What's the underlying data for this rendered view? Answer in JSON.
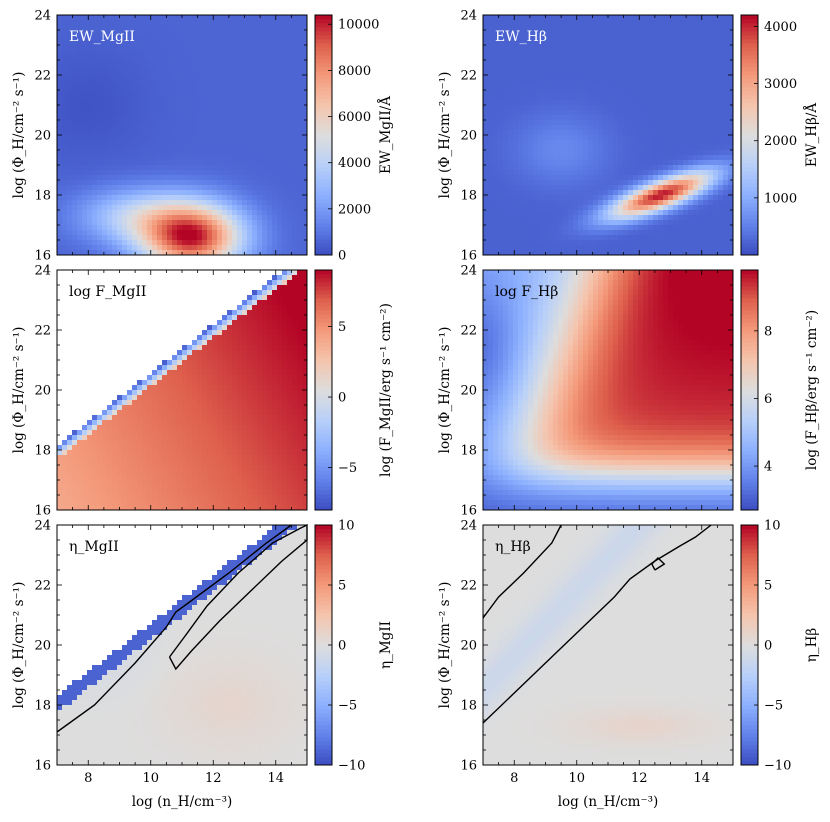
{
  "figure": {
    "xlabel": "log (n_H/cm⁻³)",
    "ylabel": "log (Φ_H/cm⁻² s⁻¹)"
  },
  "chart_data": [
    {
      "type": "heatmap",
      "id": "ew-mgii",
      "label": "EW_MgII",
      "xlim": [
        7,
        15
      ],
      "ylim": [
        16,
        24
      ],
      "xticks": [
        8,
        10,
        12,
        14
      ],
      "yticks": [
        16,
        18,
        20,
        22,
        24
      ],
      "colorbar": {
        "label": "EW_MgII/Å",
        "vmin": 0,
        "vmax": 10400,
        "ticks": [
          0,
          2000,
          4000,
          6000,
          8000,
          10000
        ],
        "tick_labels": [
          "0",
          "2000",
          "4000",
          "6000",
          "8000",
          "10000"
        ]
      },
      "colormap": "coolwarm",
      "features": {
        "peak": {
          "x": 11.3,
          "y": 16.8,
          "value": 10000
        },
        "background_value": 600
      }
    },
    {
      "type": "heatmap",
      "id": "ew-hb",
      "label": "EW_Hβ",
      "xlim": [
        7,
        15
      ],
      "ylim": [
        16,
        24
      ],
      "xticks": [
        8,
        10,
        12,
        14
      ],
      "yticks": [
        16,
        18,
        20,
        22,
        24
      ],
      "colorbar": {
        "label": "EW_Hβ/Å",
        "vmin": 0,
        "vmax": 4200,
        "ticks": [
          1000,
          2000,
          3000,
          4000
        ],
        "tick_labels": [
          "1000",
          "2000",
          "3000",
          "4000"
        ]
      },
      "colormap": "coolwarm",
      "features": {
        "peak": {
          "x": 12.7,
          "y": 18.0,
          "value": 4100
        },
        "background_value": 250
      }
    },
    {
      "type": "heatmap",
      "id": "flux-mgii",
      "label": "log F_MgII",
      "xlim": [
        7,
        15
      ],
      "ylim": [
        16,
        24
      ],
      "xticks": [
        8,
        10,
        12,
        14
      ],
      "yticks": [
        16,
        18,
        20,
        22,
        24
      ],
      "colorbar": {
        "label": "log (F_MgII/erg s⁻¹ cm⁻²)",
        "vmin": -8,
        "vmax": 9,
        "ticks": [
          -5,
          0,
          5
        ],
        "tick_labels": [
          "−5",
          "0",
          "5"
        ]
      },
      "colormap": "coolwarm",
      "features": {
        "undefined_region": "upper-left",
        "boundary": [
          [
            7,
            17.7
          ],
          [
            14.8,
            24
          ]
        ],
        "max_value": 9
      }
    },
    {
      "type": "heatmap",
      "id": "flux-hb",
      "label": "log F_Hβ",
      "xlim": [
        7,
        15
      ],
      "ylim": [
        16,
        24
      ],
      "xticks": [
        8,
        10,
        12,
        14
      ],
      "yticks": [
        16,
        18,
        20,
        22,
        24
      ],
      "colorbar": {
        "label": "log (F_Hβ/erg s⁻¹ cm⁻²)",
        "vmin": 2.7,
        "vmax": 9.8,
        "ticks": [
          4,
          6,
          8
        ],
        "tick_labels": [
          "4",
          "6",
          "8"
        ]
      },
      "colormap": "coolwarm",
      "features": {
        "min_value": 2.8,
        "max_value": 9.5
      }
    },
    {
      "type": "heatmap",
      "id": "eta-mgii",
      "label": "η_MgII",
      "xlim": [
        7,
        15
      ],
      "ylim": [
        16,
        24
      ],
      "xticks": [
        8,
        10,
        12,
        14
      ],
      "yticks": [
        16,
        18,
        20,
        22,
        24
      ],
      "colorbar": {
        "label": "η_MgII",
        "vmin": -10,
        "vmax": 10,
        "ticks": [
          -10,
          -5,
          0,
          5,
          10
        ],
        "tick_labels": [
          "−10",
          "−5",
          "0",
          "5",
          "10"
        ]
      },
      "colormap": "coolwarm",
      "features": {
        "undefined_region": "upper-left",
        "band_value": -9,
        "contour_count": 2
      }
    },
    {
      "type": "heatmap",
      "id": "eta-hb",
      "label": "η_Hβ",
      "xlim": [
        7,
        15
      ],
      "ylim": [
        16,
        24
      ],
      "xticks": [
        8,
        10,
        12,
        14
      ],
      "yticks": [
        16,
        18,
        20,
        22,
        24
      ],
      "colorbar": {
        "label": "η_Hβ",
        "vmin": -10,
        "vmax": 10,
        "ticks": [
          -10,
          -5,
          0,
          5,
          10
        ],
        "tick_labels": [
          "−10",
          "−5",
          "0",
          "5",
          "10"
        ]
      },
      "colormap": "coolwarm",
      "features": {
        "near_zero": true,
        "contour_count": 3
      }
    }
  ]
}
